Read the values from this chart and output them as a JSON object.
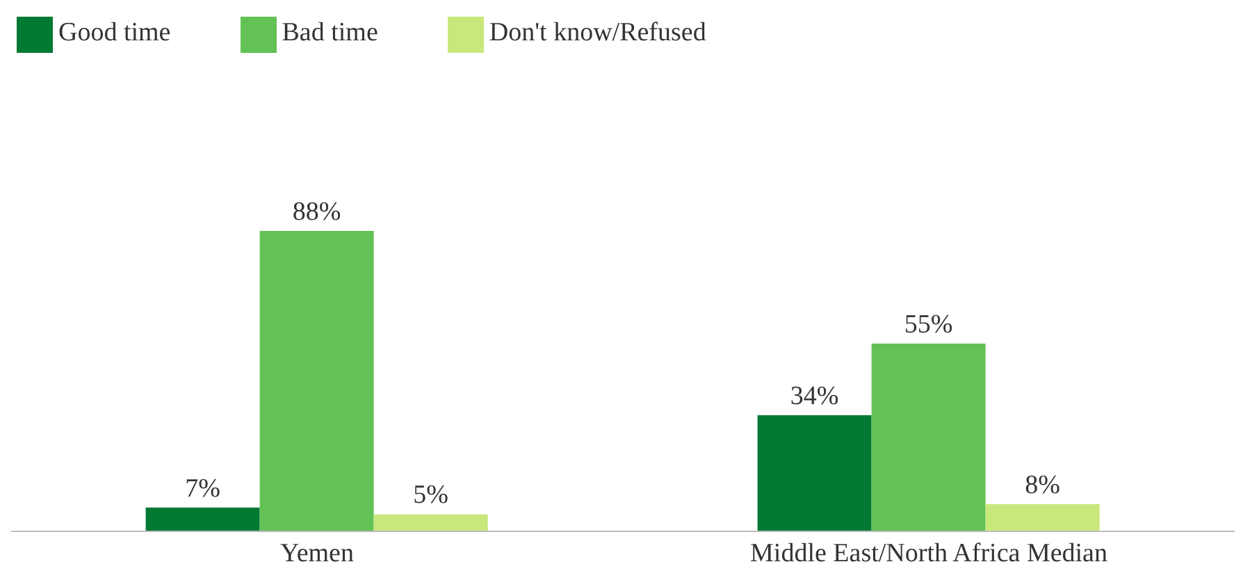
{
  "chart_data": {
    "type": "bar",
    "categories": [
      "Yemen",
      "Middle East/North Africa Median"
    ],
    "series": [
      {
        "name": "Good time",
        "color": "#037a34",
        "values": [
          7,
          34
        ],
        "value_labels": [
          "7%",
          "34%"
        ]
      },
      {
        "name": "Bad time",
        "color": "#63c255",
        "values": [
          88,
          55
        ],
        "value_labels": [
          "88%",
          "55%"
        ]
      },
      {
        "name": "Don't know/Refused",
        "color": "#c8e87c",
        "values": [
          5,
          8
        ],
        "value_labels": [
          "5%",
          "8%"
        ]
      }
    ],
    "legend": "top left",
    "grid": false
  }
}
